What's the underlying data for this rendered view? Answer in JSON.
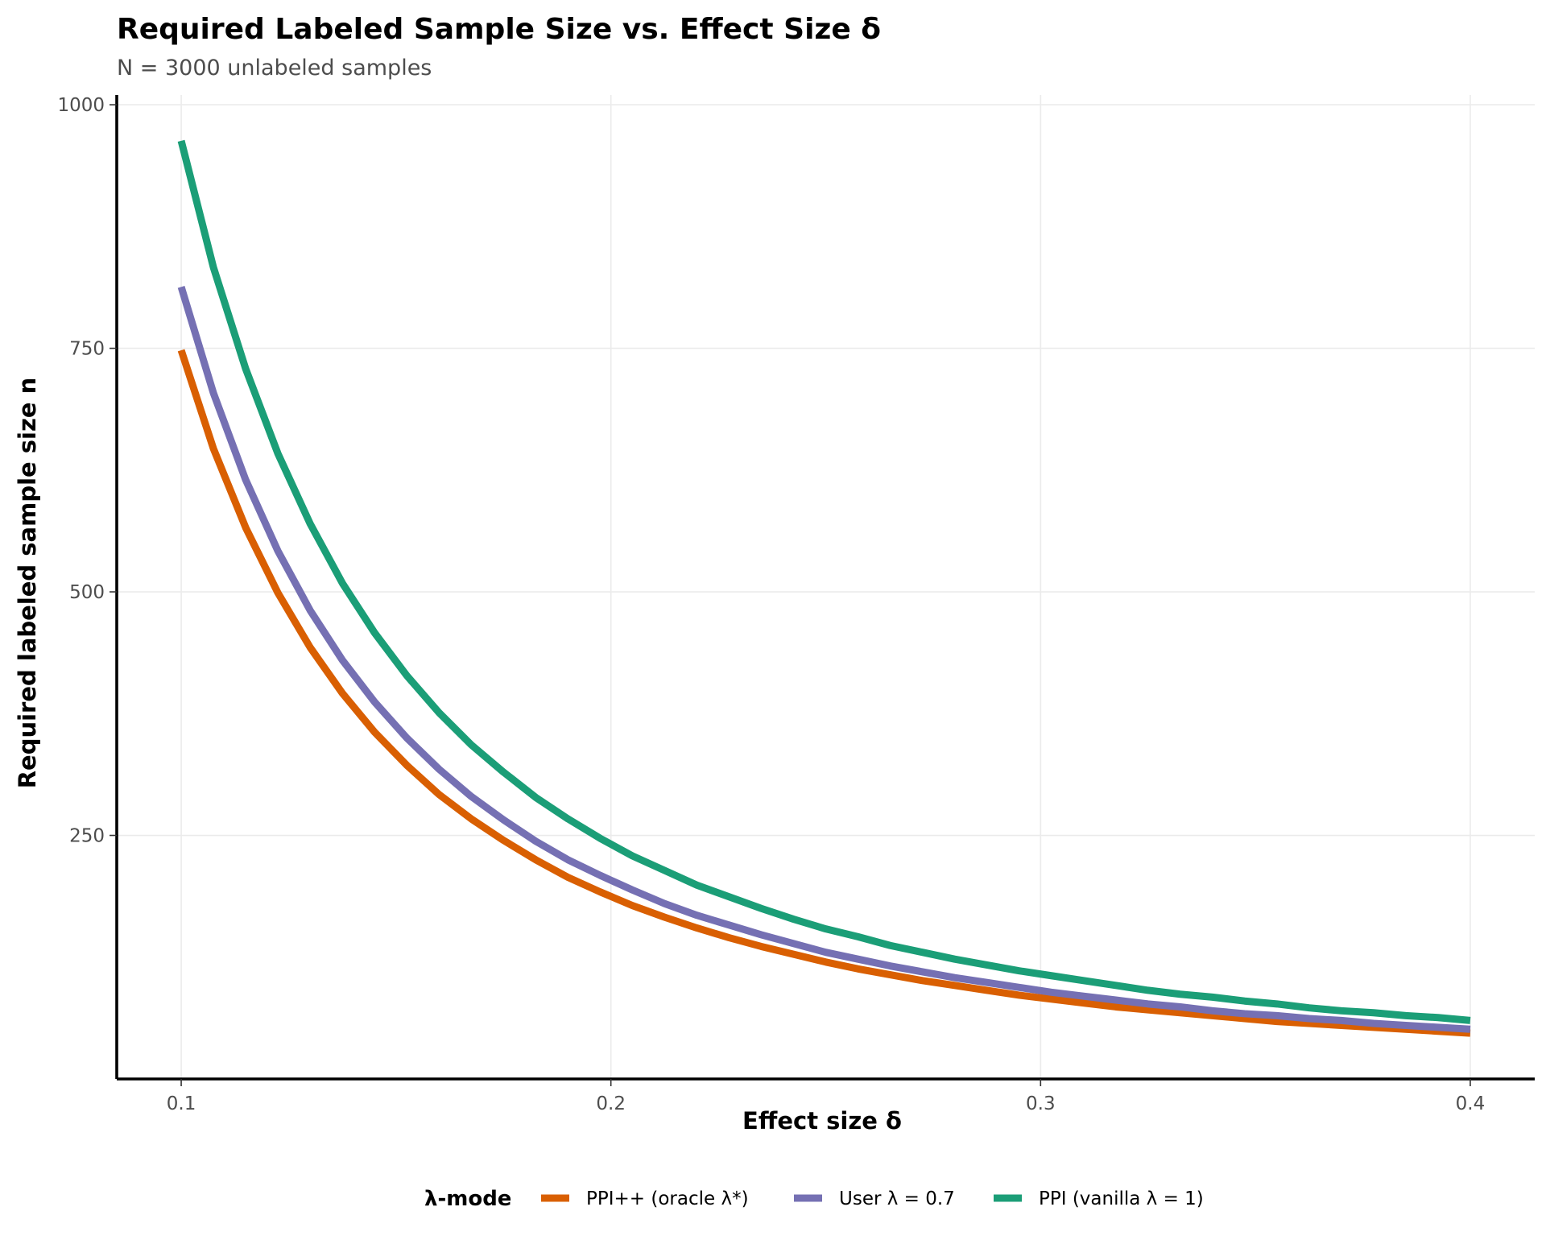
{
  "chart_data": {
    "type": "line",
    "title": "Required Labeled Sample Size vs. Effect Size δ",
    "subtitle": "N = 3000  unlabeled samples",
    "xlabel": "Effect size δ",
    "ylabel": "Required labeled sample size n",
    "xlim": [
      0.085,
      0.415
    ],
    "ylim": [
      0,
      1010
    ],
    "x_ticks": [
      0.1,
      0.2,
      0.3,
      0.4
    ],
    "x_tick_labels": [
      "0.1",
      "0.2",
      "0.3",
      "0.4"
    ],
    "y_ticks": [
      250,
      500,
      750,
      1000
    ],
    "y_tick_labels": [
      "250",
      "500",
      "750",
      "1000"
    ],
    "grid": true,
    "legend": {
      "title": "λ-mode",
      "position": "bottom"
    },
    "x": [
      0.1,
      0.1075,
      0.115,
      0.1225,
      0.13,
      0.1375,
      0.145,
      0.1525,
      0.16,
      0.1675,
      0.175,
      0.1825,
      0.19,
      0.1975,
      0.205,
      0.2125,
      0.22,
      0.2275,
      0.235,
      0.2425,
      0.25,
      0.2575,
      0.265,
      0.2725,
      0.28,
      0.2875,
      0.295,
      0.3025,
      0.31,
      0.3175,
      0.325,
      0.3325,
      0.34,
      0.3475,
      0.355,
      0.3625,
      0.37,
      0.3775,
      0.385,
      0.3925,
      0.4
    ],
    "series": [
      {
        "name": "PPI++ (oracle λ*)",
        "color": "#d95f02",
        "values": [
          748,
          647,
          566,
          499,
          443,
          396,
          356,
          322,
          292,
          267,
          245,
          225,
          207,
          192,
          178,
          166,
          155,
          145,
          136,
          128,
          120,
          113,
          107,
          101,
          96,
          91,
          86,
          82,
          78,
          74,
          71,
          68,
          65,
          62,
          59,
          57,
          55,
          53,
          51,
          49,
          47
        ]
      },
      {
        "name": "User λ = 0.7",
        "color": "#7570b3",
        "values": [
          813,
          704,
          615,
          542,
          481,
          430,
          387,
          350,
          318,
          290,
          266,
          244,
          225,
          209,
          194,
          180,
          168,
          158,
          148,
          139,
          130,
          123,
          116,
          110,
          104,
          99,
          94,
          89,
          85,
          81,
          77,
          74,
          70,
          67,
          65,
          62,
          60,
          57,
          55,
          53,
          51
        ]
      },
      {
        "name": "PPI (vanilla λ = 1)",
        "color": "#1b9e77",
        "values": [
          963,
          833,
          729,
          642,
          570,
          509,
          458,
          414,
          376,
          343,
          315,
          289,
          267,
          247,
          229,
          214,
          199,
          187,
          175,
          164,
          154,
          146,
          137,
          130,
          123,
          117,
          111,
          106,
          101,
          96,
          91,
          87,
          84,
          80,
          77,
          73,
          70,
          68,
          65,
          63,
          60
        ]
      }
    ]
  }
}
